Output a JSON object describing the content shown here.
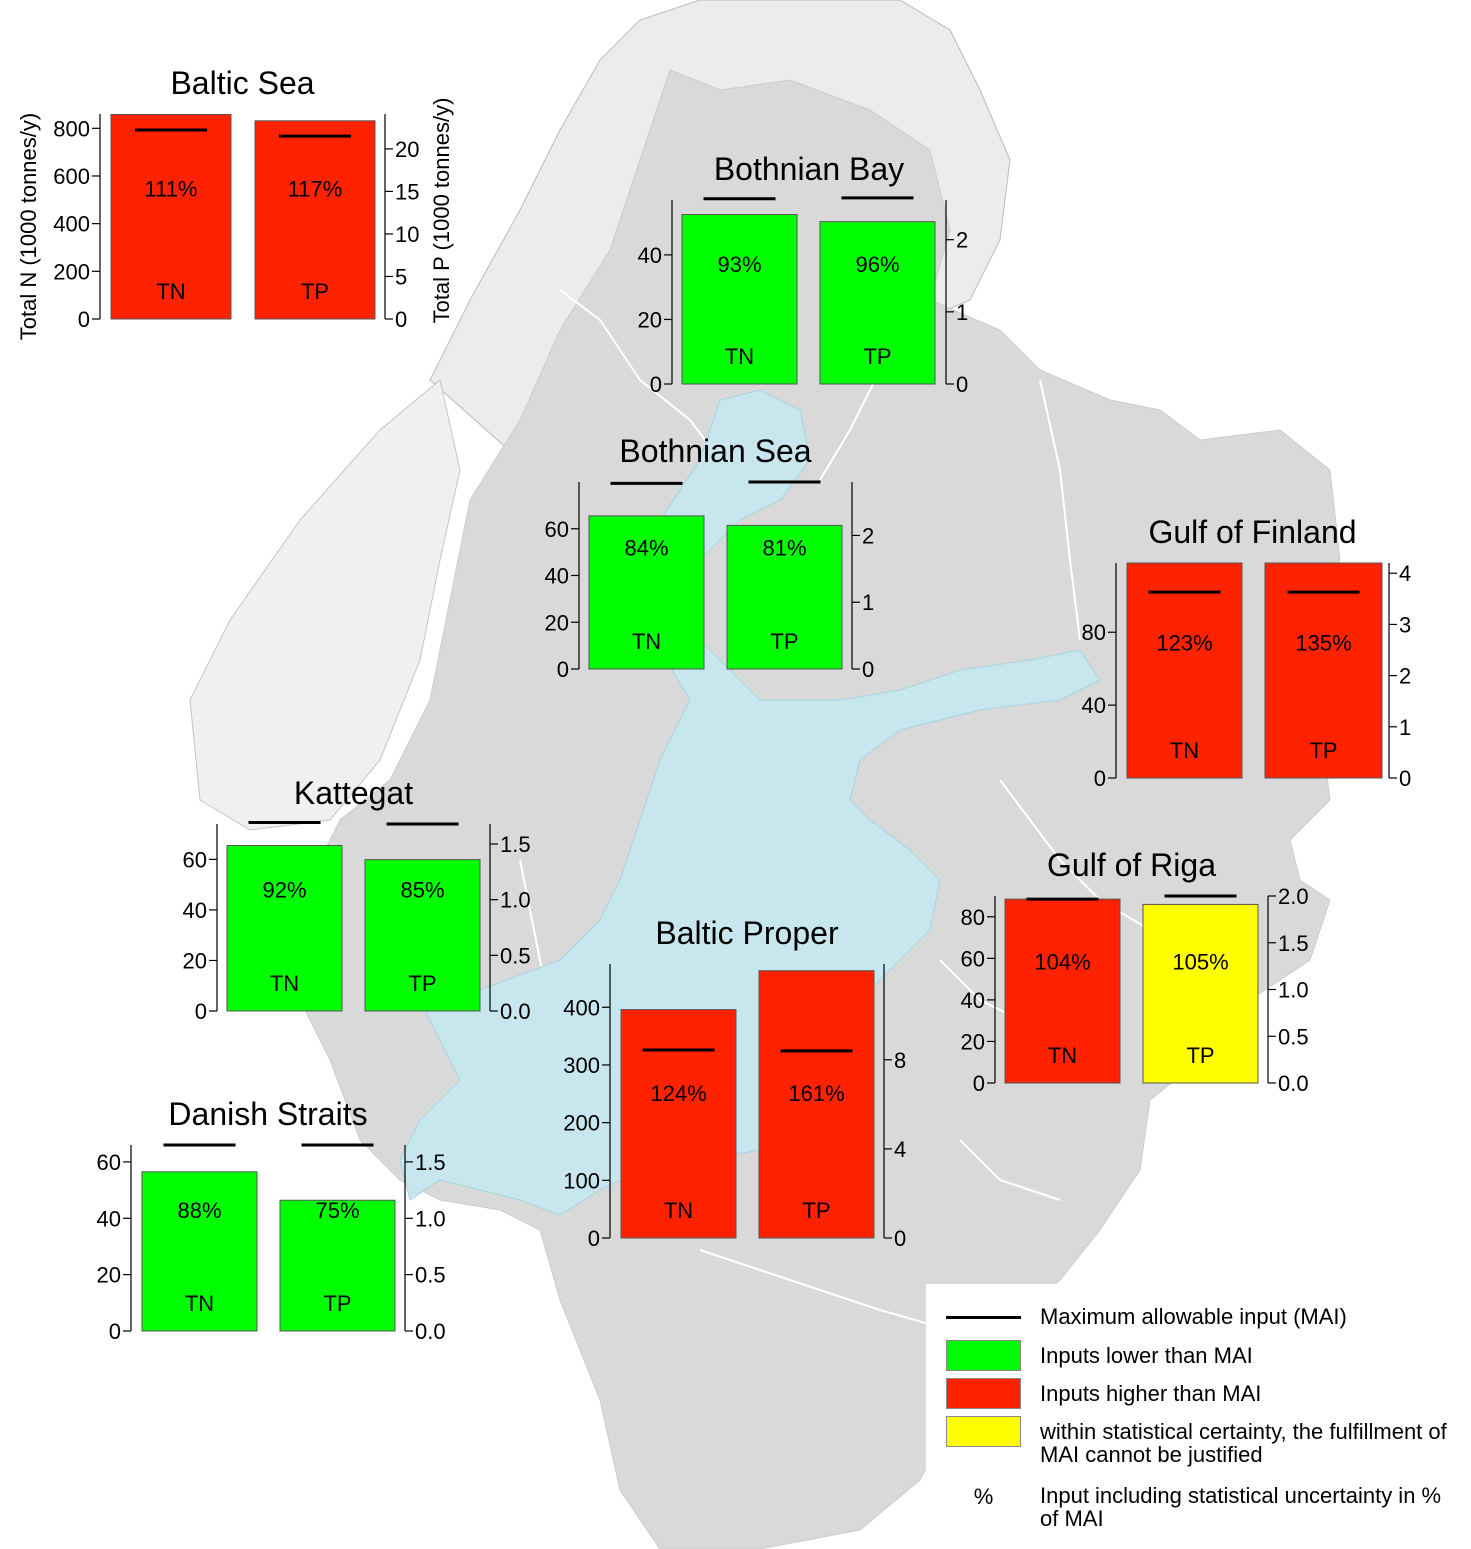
{
  "colors": {
    "sea": "#c7e6ee",
    "land": "#d9d9d9",
    "background": "#ffffff",
    "green": "#00ff00",
    "red": "#ff2200",
    "yellow": "#ffff00",
    "mai_line": "#000000"
  },
  "legend": {
    "items": [
      {
        "symbol": "line",
        "label": "Maximum allowable input (MAI)"
      },
      {
        "symbol": "green",
        "label": "Inputs lower than MAI"
      },
      {
        "symbol": "red",
        "label": "Inputs higher than MAI"
      },
      {
        "symbol": "yellow",
        "label": "within statistical certainty, the fulfillment of MAI cannot be justified"
      },
      {
        "symbol": "%",
        "label": "Input including statistical uncertainty in % of MAI"
      }
    ]
  },
  "chart_data": [
    {
      "type": "bar",
      "title": "Baltic Sea",
      "categories": [
        "TN",
        "TP"
      ],
      "left_axis": {
        "label": "Total N (1000 tonnes/y)",
        "range": [
          0,
          860
        ],
        "ticks": [
          0,
          200,
          400,
          600,
          800
        ]
      },
      "right_axis": {
        "label": "Total P (1000 tonnes/y)",
        "range": [
          0,
          24.1
        ],
        "ticks": [
          0,
          5,
          10,
          15,
          20
        ]
      },
      "values": [
        858,
        23.3
      ],
      "mai": [
        793,
        21.5
      ],
      "percent_labels": [
        "111%",
        "117%"
      ],
      "status": [
        "red",
        "red"
      ]
    },
    {
      "type": "bar",
      "title": "Bothnian Bay",
      "categories": [
        "TN",
        "TP"
      ],
      "left_axis": {
        "range": [
          0,
          57
        ],
        "ticks": [
          0,
          20,
          40
        ]
      },
      "right_axis": {
        "range": [
          0,
          2.55
        ],
        "ticks": [
          0,
          1,
          2
        ]
      },
      "values": [
        52.5,
        2.25
      ],
      "mai": [
        57.4,
        2.58
      ],
      "percent_labels": [
        "93%",
        "96%"
      ],
      "status": [
        "green",
        "green"
      ]
    },
    {
      "type": "bar",
      "title": "Bothnian Sea",
      "categories": [
        "TN",
        "TP"
      ],
      "left_axis": {
        "range": [
          0,
          80
        ],
        "ticks": [
          0,
          20,
          40,
          60
        ]
      },
      "right_axis": {
        "range": [
          0,
          2.8
        ],
        "ticks": [
          0,
          1,
          2
        ]
      },
      "values": [
        65.5,
        2.15
      ],
      "mai": [
        79.4,
        2.8
      ],
      "percent_labels": [
        "84%",
        "81%"
      ],
      "status": [
        "green",
        "green"
      ]
    },
    {
      "type": "bar",
      "title": "Gulf of Finland",
      "categories": [
        "TN",
        "TP"
      ],
      "left_axis": {
        "range": [
          0,
          118
        ],
        "ticks": [
          0,
          40,
          80
        ]
      },
      "right_axis": {
        "range": [
          0,
          4.2
        ],
        "ticks": [
          0,
          1,
          2,
          3,
          4
        ]
      },
      "values": [
        118,
        4.2
      ],
      "mai": [
        102,
        3.63
      ],
      "percent_labels": [
        "123%",
        "135%"
      ],
      "status": [
        "red",
        "red"
      ]
    },
    {
      "type": "bar",
      "title": "Kattegat",
      "categories": [
        "TN",
        "TP"
      ],
      "left_axis": {
        "range": [
          0,
          74
        ],
        "ticks": [
          0,
          20,
          40,
          60
        ]
      },
      "right_axis": {
        "range": [
          0,
          1.68
        ],
        "ticks": [
          0.0,
          0.5,
          1.0,
          1.5
        ]
      },
      "values": [
        65.5,
        1.36
      ],
      "mai": [
        74.6,
        1.68
      ],
      "percent_labels": [
        "92%",
        "85%"
      ],
      "status": [
        "green",
        "green"
      ]
    },
    {
      "type": "bar",
      "title": "Gulf of Riga",
      "categories": [
        "TN",
        "TP"
      ],
      "left_axis": {
        "range": [
          0,
          90
        ],
        "ticks": [
          0,
          20,
          40,
          60,
          80
        ]
      },
      "right_axis": {
        "range": [
          0,
          2.0
        ],
        "ticks": [
          0.0,
          0.5,
          1.0,
          1.5,
          2.0
        ]
      },
      "values": [
        88.5,
        1.91
      ],
      "mai": [
        88.5,
        2.0
      ],
      "percent_labels": [
        "104%",
        "105%"
      ],
      "status": [
        "red",
        "yellow"
      ]
    },
    {
      "type": "bar",
      "title": "Baltic Proper",
      "categories": [
        "TN",
        "TP"
      ],
      "left_axis": {
        "range": [
          0,
          475
        ],
        "ticks": [
          0,
          100,
          200,
          300,
          400
        ]
      },
      "right_axis": {
        "range": [
          0,
          12.3
        ],
        "ticks": [
          0,
          4,
          8
        ]
      },
      "values": [
        396,
        12.0
      ],
      "mai": [
        326,
        8.4
      ],
      "percent_labels": [
        "124%",
        "161%"
      ],
      "status": [
        "red",
        "red"
      ]
    },
    {
      "type": "bar",
      "title": "Danish Straits",
      "categories": [
        "TN",
        "TP"
      ],
      "left_axis": {
        "range": [
          0,
          66
        ],
        "ticks": [
          0,
          20,
          40,
          60
        ]
      },
      "right_axis": {
        "range": [
          0,
          1.65
        ],
        "ticks": [
          0.0,
          0.5,
          1.0,
          1.5
        ]
      },
      "values": [
        56.5,
        1.16
      ],
      "mai": [
        66,
        1.65
      ],
      "percent_labels": [
        "88%",
        "75%"
      ],
      "status": [
        "green",
        "green"
      ]
    }
  ]
}
